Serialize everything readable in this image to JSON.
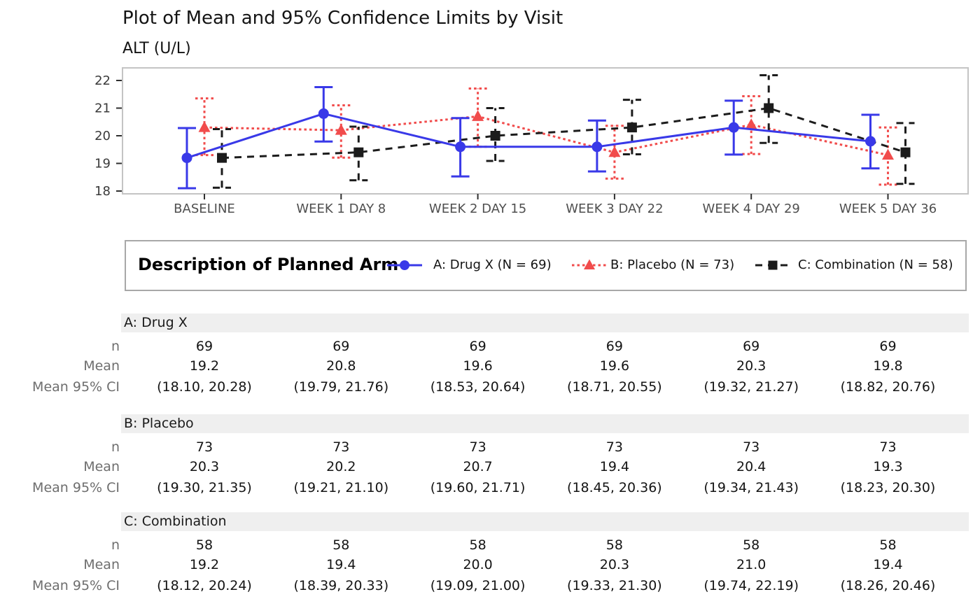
{
  "header": {
    "title": "Plot of Mean and 95% Confidence Limits by Visit",
    "subtitle": "ALT (U/L)"
  },
  "chart_data": {
    "type": "line",
    "title": "Plot of Mean and 95% Confidence Limits by Visit",
    "ylabel": "ALT (U/L)",
    "xlabel": "",
    "categories": [
      "BASELINE",
      "WEEK 1 DAY 8",
      "WEEK 2 DAY 15",
      "WEEK 3 DAY 22",
      "WEEK 4 DAY 29",
      "WEEK 5 DAY 36"
    ],
    "yticks": [
      18,
      19,
      20,
      21,
      22
    ],
    "ylim": [
      17.9,
      22.45
    ],
    "grid": false,
    "legend_position": "bottom",
    "error_bars": "95% CI",
    "series": [
      {
        "name": "A: Drug X (N = 69)",
        "color": "#3939e8",
        "marker": "circle",
        "line": "solid",
        "n": [
          69,
          69,
          69,
          69,
          69,
          69
        ],
        "means": [
          19.2,
          20.8,
          19.6,
          19.6,
          20.3,
          19.8
        ],
        "ci_low": [
          18.1,
          19.79,
          18.53,
          18.71,
          19.32,
          18.82
        ],
        "ci_high": [
          20.28,
          21.76,
          20.64,
          20.55,
          21.27,
          20.76
        ]
      },
      {
        "name": "B: Placebo (N = 73)",
        "color": "#f14c4c",
        "marker": "triangle",
        "line": "dotted",
        "n": [
          73,
          73,
          73,
          73,
          73,
          73
        ],
        "means": [
          20.3,
          20.2,
          20.7,
          19.4,
          20.4,
          19.3
        ],
        "ci_low": [
          19.3,
          19.21,
          19.6,
          18.45,
          19.34,
          18.23
        ],
        "ci_high": [
          21.35,
          21.1,
          21.71,
          20.36,
          21.43,
          20.3
        ]
      },
      {
        "name": "C: Combination (N = 58)",
        "color": "#1c1c1c",
        "marker": "square",
        "line": "dashed",
        "n": [
          58,
          58,
          58,
          58,
          58,
          58
        ],
        "means": [
          19.2,
          19.4,
          20.0,
          20.3,
          21.0,
          19.4
        ],
        "ci_low": [
          18.12,
          18.39,
          19.09,
          19.33,
          19.74,
          18.26
        ],
        "ci_high": [
          20.24,
          20.33,
          21.0,
          21.3,
          22.19,
          20.46
        ]
      }
    ]
  },
  "legend": {
    "title": "Description of Planned Arm"
  },
  "tables": [
    {
      "group": "A: Drug X",
      "rows": [
        {
          "label": "n",
          "values": [
            "69",
            "69",
            "69",
            "69",
            "69",
            "69"
          ]
        },
        {
          "label": "Mean",
          "values": [
            "19.2",
            "20.8",
            "19.6",
            "19.6",
            "20.3",
            "19.8"
          ]
        },
        {
          "label": "Mean 95% CI",
          "values": [
            "(18.10, 20.28)",
            "(19.79, 21.76)",
            "(18.53, 20.64)",
            "(18.71, 20.55)",
            "(19.32, 21.27)",
            "(18.82, 20.76)"
          ]
        }
      ]
    },
    {
      "group": "B: Placebo",
      "rows": [
        {
          "label": "n",
          "values": [
            "73",
            "73",
            "73",
            "73",
            "73",
            "73"
          ]
        },
        {
          "label": "Mean",
          "values": [
            "20.3",
            "20.2",
            "20.7",
            "19.4",
            "20.4",
            "19.3"
          ]
        },
        {
          "label": "Mean 95% CI",
          "values": [
            "(19.30, 21.35)",
            "(19.21, 21.10)",
            "(19.60, 21.71)",
            "(18.45, 20.36)",
            "(19.34, 21.43)",
            "(18.23, 20.30)"
          ]
        }
      ]
    },
    {
      "group": "C: Combination",
      "rows": [
        {
          "label": "n",
          "values": [
            "58",
            "58",
            "58",
            "58",
            "58",
            "58"
          ]
        },
        {
          "label": "Mean",
          "values": [
            "19.2",
            "19.4",
            "20.0",
            "20.3",
            "21.0",
            "19.4"
          ]
        },
        {
          "label": "Mean 95% CI",
          "values": [
            "(18.12, 20.24)",
            "(18.39, 20.33)",
            "(19.09, 21.00)",
            "(19.33, 21.30)",
            "(19.74, 22.19)",
            "(18.26, 20.46)"
          ]
        }
      ]
    }
  ],
  "colors": {
    "drug_x": "#3939e8",
    "placebo": "#f14c4c",
    "combination": "#1c1c1c",
    "panel_border": "#c4c4c4",
    "legend_border": "#a8a8a8",
    "table_band": "#efefef",
    "axis_text": "#4f4f4f"
  }
}
